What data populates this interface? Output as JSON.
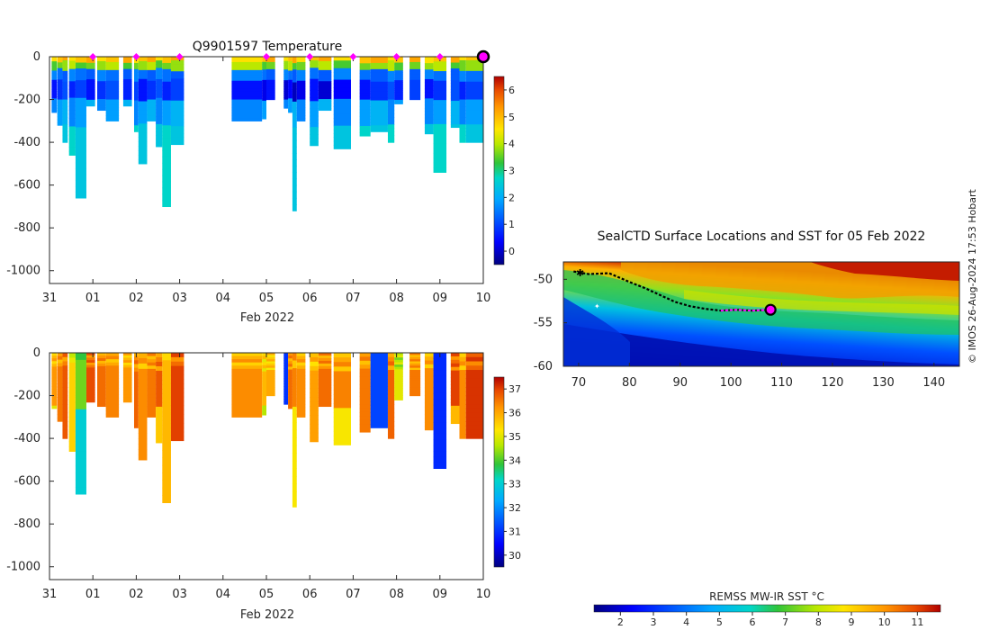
{
  "figure": {
    "credit": "© IMOS 26-Aug-2024 17:53 Hobart"
  },
  "colors": {
    "jet": [
      "#00007f",
      "#0000ff",
      "#007fff",
      "#00d6c8",
      "#2fc43a",
      "#b8e800",
      "#ffe600",
      "#ff9500",
      "#e84800",
      "#b00000"
    ],
    "profile_marker": "#ff00ff",
    "last_marker_ring": "#000000",
    "axis": "#262626"
  },
  "chart_data": [
    {
      "id": "temperature",
      "type": "heatmap",
      "title": "Q9901597  Temperature",
      "xlabel": "Feb 2022",
      "ylabel": "",
      "x_ticks": [
        "31",
        "01",
        "02",
        "03",
        "04",
        "05",
        "06",
        "07",
        "08",
        "09",
        "10"
      ],
      "y_ticks": [
        "0",
        "-200",
        "-400",
        "-600",
        "-800",
        "-1000"
      ],
      "ylim": [
        -1060,
        0
      ],
      "xlim": [
        0,
        10
      ],
      "colorbar": {
        "min": -0.5,
        "max": 6.5,
        "ticks": [
          "0",
          "1",
          "2",
          "3",
          "4",
          "5",
          "6"
        ]
      },
      "profile_markers": [
        1,
        2,
        3,
        5,
        6,
        7,
        8,
        9,
        10
      ],
      "profiles": [
        {
          "x": 0.05,
          "w": 0.12,
          "depth": 260
        },
        {
          "x": 0.18,
          "w": 0.12,
          "depth": 320
        },
        {
          "x": 0.3,
          "w": 0.12,
          "depth": 400
        },
        {
          "x": 0.45,
          "w": 0.15,
          "depth": 460
        },
        {
          "x": 0.6,
          "w": 0.25,
          "depth": 660
        },
        {
          "x": 0.85,
          "w": 0.2,
          "depth": 230
        },
        {
          "x": 1.1,
          "w": 0.2,
          "depth": 250
        },
        {
          "x": 1.3,
          "w": 0.3,
          "depth": 300
        },
        {
          "x": 1.7,
          "w": 0.2,
          "depth": 230
        },
        {
          "x": 1.95,
          "w": 0.1,
          "depth": 350
        },
        {
          "x": 2.05,
          "w": 0.2,
          "depth": 500
        },
        {
          "x": 2.25,
          "w": 0.2,
          "depth": 300
        },
        {
          "x": 2.45,
          "w": 0.15,
          "depth": 420
        },
        {
          "x": 2.6,
          "w": 0.2,
          "depth": 700
        },
        {
          "x": 2.8,
          "w": 0.3,
          "depth": 410
        },
        {
          "x": 4.2,
          "w": 0.7,
          "depth": 300
        },
        {
          "x": 4.9,
          "w": 0.1,
          "depth": 290
        },
        {
          "x": 5.0,
          "w": 0.2,
          "depth": 200
        },
        {
          "x": 5.4,
          "w": 0.1,
          "depth": 240
        },
        {
          "x": 5.5,
          "w": 0.1,
          "depth": 260
        },
        {
          "x": 5.6,
          "w": 0.1,
          "depth": 720
        },
        {
          "x": 5.7,
          "w": 0.2,
          "depth": 300
        },
        {
          "x": 6.0,
          "w": 0.2,
          "depth": 415
        },
        {
          "x": 6.2,
          "w": 0.3,
          "depth": 250
        },
        {
          "x": 6.55,
          "w": 0.4,
          "depth": 430
        },
        {
          "x": 7.15,
          "w": 0.25,
          "depth": 370
        },
        {
          "x": 7.4,
          "w": 0.4,
          "depth": 350
        },
        {
          "x": 7.8,
          "w": 0.15,
          "depth": 400
        },
        {
          "x": 7.95,
          "w": 0.2,
          "depth": 220
        },
        {
          "x": 8.3,
          "w": 0.25,
          "depth": 200
        },
        {
          "x": 8.65,
          "w": 0.2,
          "depth": 360
        },
        {
          "x": 8.85,
          "w": 0.3,
          "depth": 540
        },
        {
          "x": 9.25,
          "w": 0.2,
          "depth": 330
        },
        {
          "x": 9.45,
          "w": 0.15,
          "depth": 400
        },
        {
          "x": 9.6,
          "w": 0.4,
          "depth": 400
        }
      ]
    },
    {
      "id": "salinity",
      "type": "heatmap",
      "title": "",
      "xlabel": "Feb 2022",
      "ylabel": "",
      "x_ticks": [
        "31",
        "01",
        "02",
        "03",
        "04",
        "05",
        "06",
        "07",
        "08",
        "09",
        "10"
      ],
      "y_ticks": [
        "0",
        "-200",
        "-400",
        "-600",
        "-800",
        "-1000"
      ],
      "ylim": [
        -1060,
        0
      ],
      "xlim": [
        0,
        10
      ],
      "colorbar": {
        "min": 29.5,
        "max": 37.5,
        "ticks": [
          "30",
          "31",
          "32",
          "33",
          "34",
          "35",
          "36",
          "37"
        ]
      },
      "profiles": [
        {
          "x": 0.05,
          "w": 0.12,
          "depth": 260,
          "v": 36.2
        },
        {
          "x": 0.18,
          "w": 0.12,
          "depth": 320,
          "v": 36.5
        },
        {
          "x": 0.3,
          "w": 0.12,
          "depth": 400,
          "v": 36.8
        },
        {
          "x": 0.45,
          "w": 0.15,
          "depth": 460,
          "v": 35.5
        },
        {
          "x": 0.6,
          "w": 0.25,
          "depth": 660,
          "v": 34.2
        },
        {
          "x": 0.85,
          "w": 0.2,
          "depth": 230,
          "v": 36.9
        },
        {
          "x": 1.1,
          "w": 0.2,
          "depth": 250,
          "v": 36.6
        },
        {
          "x": 1.3,
          "w": 0.3,
          "depth": 300,
          "v": 36.4
        },
        {
          "x": 1.7,
          "w": 0.2,
          "depth": 230,
          "v": 36.2
        },
        {
          "x": 1.95,
          "w": 0.1,
          "depth": 350,
          "v": 36.7
        },
        {
          "x": 2.05,
          "w": 0.2,
          "depth": 500,
          "v": 36.3
        },
        {
          "x": 2.25,
          "w": 0.2,
          "depth": 300,
          "v": 36.5
        },
        {
          "x": 2.45,
          "w": 0.15,
          "depth": 420,
          "v": 36.8
        },
        {
          "x": 2.6,
          "w": 0.2,
          "depth": 700,
          "v": 35.8
        },
        {
          "x": 2.8,
          "w": 0.3,
          "depth": 410,
          "v": 37.0
        },
        {
          "x": 4.2,
          "w": 0.7,
          "depth": 300,
          "v": 36.3
        },
        {
          "x": 4.9,
          "w": 0.1,
          "depth": 290,
          "v": 35.8
        },
        {
          "x": 5.0,
          "w": 0.2,
          "depth": 200,
          "v": 36.0
        },
        {
          "x": 5.4,
          "w": 0.1,
          "depth": 240,
          "v": 31.0
        },
        {
          "x": 5.5,
          "w": 0.1,
          "depth": 260,
          "v": 36.6
        },
        {
          "x": 5.6,
          "w": 0.1,
          "depth": 720,
          "v": 36.4
        },
        {
          "x": 5.7,
          "w": 0.2,
          "depth": 300,
          "v": 36.3
        },
        {
          "x": 6.0,
          "w": 0.2,
          "depth": 415,
          "v": 36.1
        },
        {
          "x": 6.2,
          "w": 0.3,
          "depth": 250,
          "v": 36.6
        },
        {
          "x": 6.55,
          "w": 0.4,
          "depth": 430,
          "v": 36.4
        },
        {
          "x": 7.15,
          "w": 0.25,
          "depth": 370,
          "v": 36.5
        },
        {
          "x": 7.4,
          "w": 0.4,
          "depth": 350,
          "v": 31.2
        },
        {
          "x": 7.8,
          "w": 0.15,
          "depth": 400,
          "v": 36.7
        },
        {
          "x": 7.95,
          "w": 0.2,
          "depth": 220,
          "v": 35.0
        },
        {
          "x": 8.3,
          "w": 0.25,
          "depth": 200,
          "v": 36.5
        },
        {
          "x": 8.65,
          "w": 0.2,
          "depth": 360,
          "v": 36.3
        },
        {
          "x": 8.85,
          "w": 0.3,
          "depth": 540,
          "v": 30.9
        },
        {
          "x": 9.25,
          "w": 0.2,
          "depth": 330,
          "v": 37.0
        },
        {
          "x": 9.45,
          "w": 0.15,
          "depth": 400,
          "v": 36.3
        },
        {
          "x": 9.6,
          "w": 0.4,
          "depth": 400,
          "v": 37.1
        }
      ]
    },
    {
      "id": "sst-map",
      "type": "heatmap",
      "title": "SealCTD Surface Locations and SST for 05 Feb 2022",
      "xlabel": "",
      "ylabel": "",
      "x_ticks": [
        "70",
        "80",
        "90",
        "100",
        "110",
        "120",
        "130",
        "140"
      ],
      "y_ticks": [
        "-50",
        "-55",
        "-60"
      ],
      "xlim": [
        67,
        145
      ],
      "ylim": [
        -60,
        -48
      ],
      "colorbar": {
        "title": "REMSS MW-IR SST °C",
        "min": 1.2,
        "max": 11.7,
        "ticks": [
          "2",
          "3",
          "4",
          "5",
          "6",
          "7",
          "8",
          "9",
          "10",
          "11"
        ]
      },
      "track": [
        {
          "lon": 69.0,
          "lat": -49.1
        },
        {
          "lon": 72.0,
          "lat": -49.4
        },
        {
          "lon": 76.0,
          "lat": -49.3
        },
        {
          "lon": 80.0,
          "lat": -50.3
        },
        {
          "lon": 83.0,
          "lat": -51.0
        },
        {
          "lon": 86.0,
          "lat": -51.8
        },
        {
          "lon": 89.0,
          "lat": -52.6
        },
        {
          "lon": 92.0,
          "lat": -53.1
        },
        {
          "lon": 95.0,
          "lat": -53.4
        },
        {
          "lon": 98.0,
          "lat": -53.6
        },
        {
          "lon": 101.0,
          "lat": -53.5
        },
        {
          "lon": 104.0,
          "lat": -53.6
        },
        {
          "lon": 107.8,
          "lat": -53.5
        }
      ],
      "current_position": {
        "lon": 107.8,
        "lat": -53.5
      },
      "start_position": {
        "lon": 69.0,
        "lat": -49.1
      }
    }
  ]
}
